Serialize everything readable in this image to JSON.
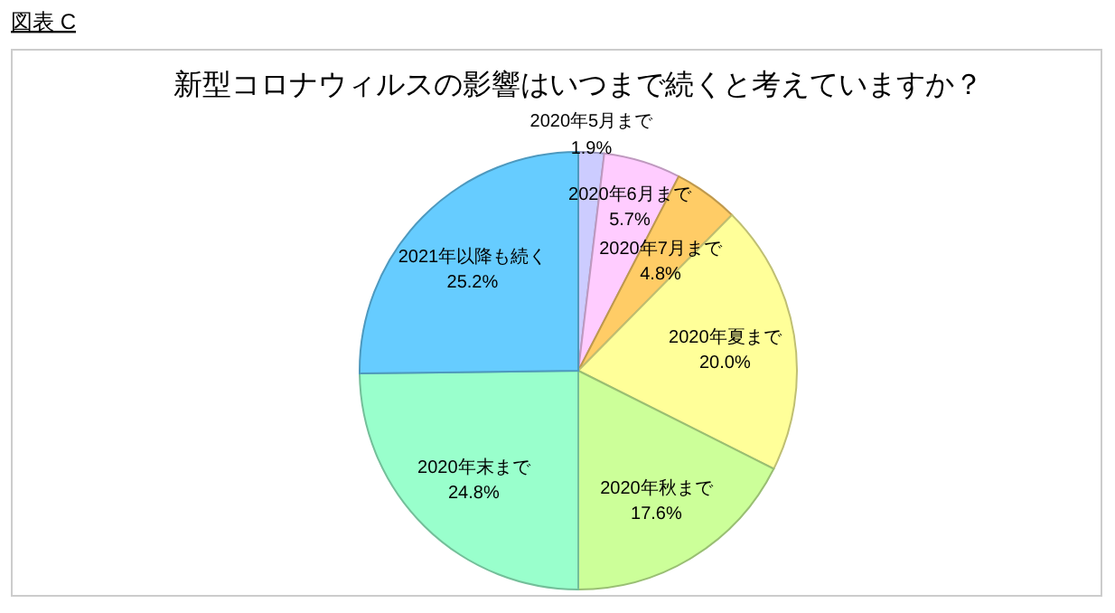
{
  "chart_data": {
    "type": "pie",
    "title": "新型コロナウィルスの影響はいつまで続くと考えていますか？",
    "annotations": [
      "図表 C"
    ],
    "categories": [
      "2020年5月まで",
      "2020年6月まで",
      "2020年7月まで",
      "2020年夏まで",
      "2020年秋まで",
      "2020年末まで",
      "2021年以降も続く"
    ],
    "values": [
      1.9,
      5.7,
      4.8,
      20.0,
      17.6,
      24.8,
      25.2
    ],
    "colors": [
      "#ccccff",
      "#ffccff",
      "#ffcc66",
      "#ffff99",
      "#ccff99",
      "#99ffcc",
      "#66ccff"
    ],
    "value_labels": [
      "1.9%",
      "5.7%",
      "4.8%",
      "20.0%",
      "17.6%",
      "24.8%",
      "25.2%"
    ]
  }
}
